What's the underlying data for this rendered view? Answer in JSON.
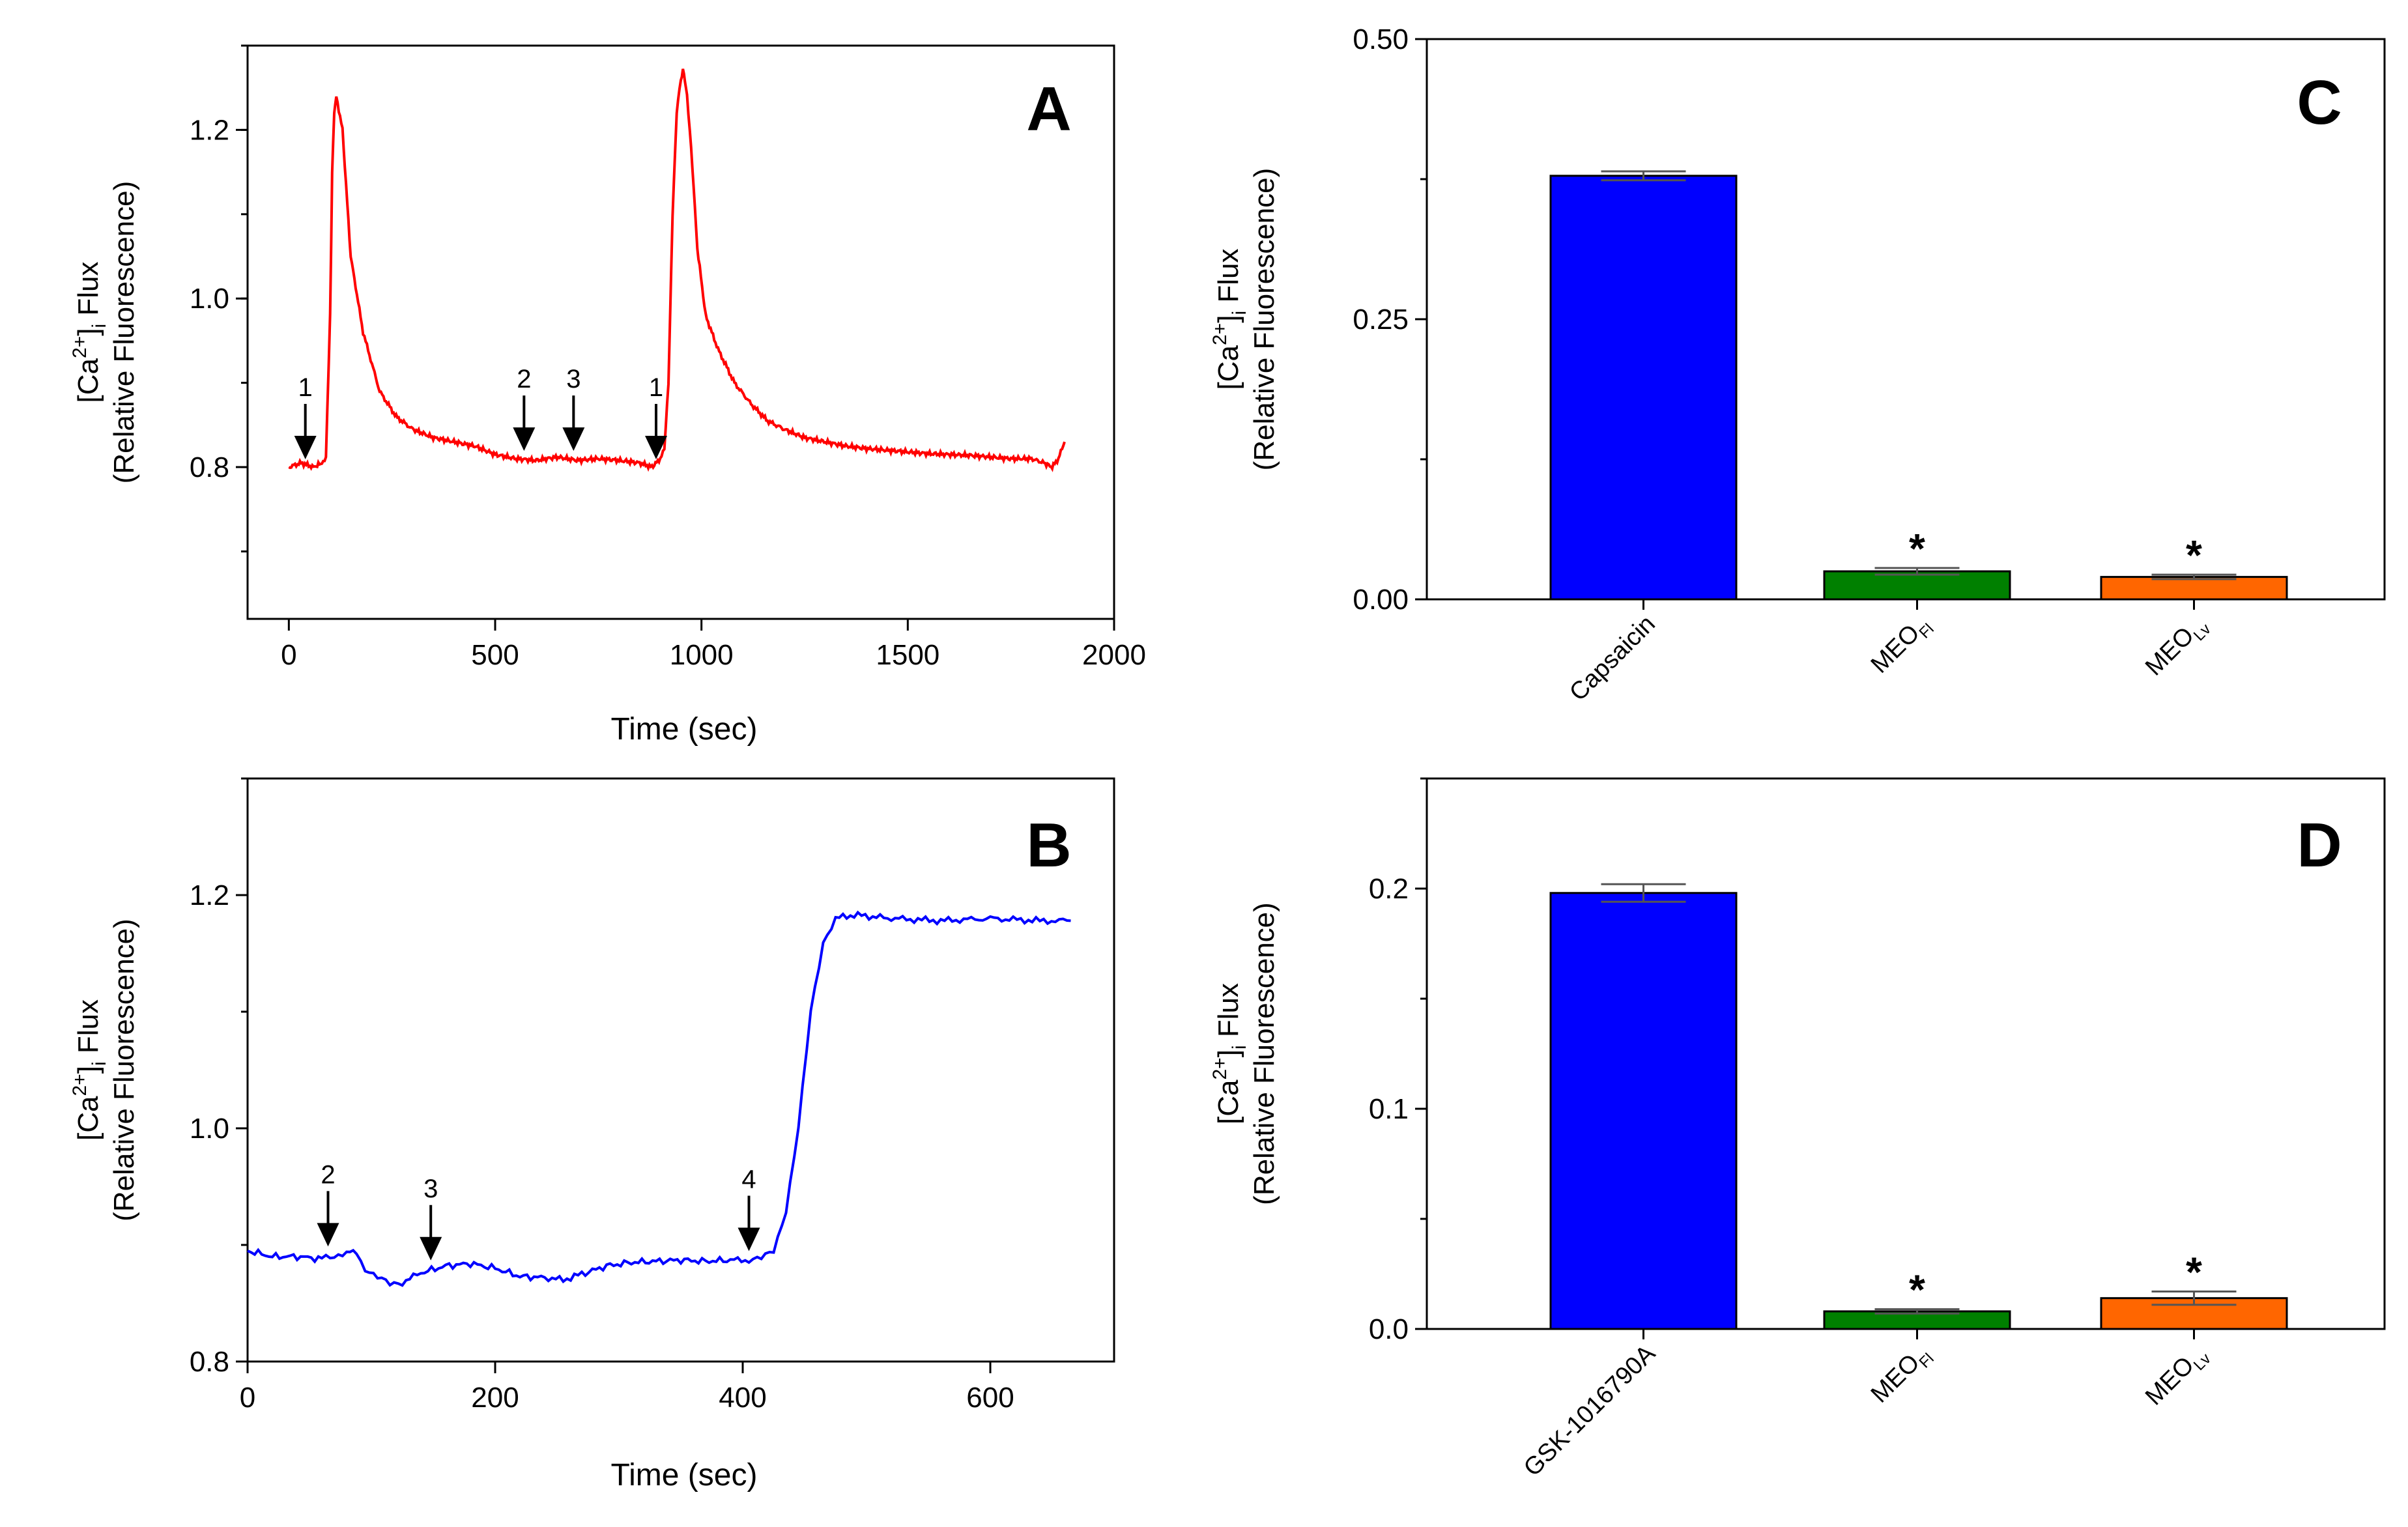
{
  "chart_data": [
    {
      "panel": "A",
      "type": "line",
      "xlabel": "Time  (sec)",
      "ylabel_line1": "[Ca2+]i Flux",
      "ylabel_ca": "[Ca",
      "ylabel_sup": "2+",
      "ylabel_close": "]",
      "ylabel_sub": "i",
      "ylabel_flux": " Flux",
      "ylabel_line2": "(Relative Fluorescence)",
      "xlim": [
        -100,
        2000
      ],
      "ylim": [
        0.62,
        1.3
      ],
      "x_ticks": [
        0,
        500,
        1000,
        1500,
        2000
      ],
      "x_tick_labels": [
        "0",
        "500",
        "1000",
        "1500",
        "2000"
      ],
      "y_ticks": [
        0.8,
        1.0,
        1.2
      ],
      "y_tick_labels": [
        "0.8",
        "1.0",
        "1.2"
      ],
      "color": "#ff0000",
      "series": [
        {
          "name": "trace",
          "x": [
            0,
            30,
            60,
            80,
            90,
            100,
            105,
            110,
            115,
            130,
            150,
            180,
            220,
            260,
            300,
            350,
            400,
            450,
            500,
            550,
            600,
            650,
            700,
            750,
            800,
            850,
            880,
            900,
            910,
            920,
            930,
            940,
            950,
            955,
            960,
            965,
            975,
            990,
            1010,
            1040,
            1080,
            1120,
            1160,
            1200,
            1250,
            1300,
            1350,
            1400,
            1450,
            1500,
            1550,
            1600,
            1650,
            1700,
            1750,
            1800,
            1830,
            1850,
            1865,
            1880
          ],
          "y": [
            0.8,
            0.805,
            0.8,
            0.805,
            0.81,
            0.98,
            1.15,
            1.22,
            1.24,
            1.2,
            1.05,
            0.96,
            0.89,
            0.86,
            0.845,
            0.835,
            0.83,
            0.825,
            0.815,
            0.81,
            0.808,
            0.812,
            0.808,
            0.81,
            0.808,
            0.805,
            0.8,
            0.81,
            0.82,
            0.9,
            1.1,
            1.22,
            1.26,
            1.27,
            1.26,
            1.24,
            1.18,
            1.06,
            0.98,
            0.94,
            0.9,
            0.875,
            0.855,
            0.845,
            0.835,
            0.83,
            0.825,
            0.822,
            0.82,
            0.818,
            0.816,
            0.815,
            0.814,
            0.812,
            0.81,
            0.81,
            0.805,
            0.8,
            0.81,
            0.83
          ]
        }
      ],
      "arrows": [
        {
          "x": 40,
          "y": 0.8,
          "label": "1"
        },
        {
          "x": 570,
          "y": 0.81,
          "label": "2"
        },
        {
          "x": 690,
          "y": 0.81,
          "label": "3"
        },
        {
          "x": 890,
          "y": 0.8,
          "label": "1"
        }
      ]
    },
    {
      "panel": "B",
      "type": "line",
      "xlabel": "Time  (sec)",
      "ylabel_ca": "[Ca",
      "ylabel_sup": "2+",
      "ylabel_close": "]",
      "ylabel_sub": "i",
      "ylabel_flux": " Flux",
      "ylabel_line2": "(Relative Fluorescence)",
      "xlim": [
        0,
        700
      ],
      "ylim": [
        0.8,
        1.3
      ],
      "x_ticks": [
        0,
        200,
        400,
        600
      ],
      "x_tick_labels": [
        "0",
        "200",
        "400",
        "600"
      ],
      "y_ticks": [
        0.8,
        1.0,
        1.2
      ],
      "y_tick_labels": [
        "0.8",
        "1.0",
        "1.2"
      ],
      "color": "#0000ff",
      "series": [
        {
          "name": "trace",
          "x": [
            0,
            20,
            40,
            60,
            70,
            80,
            88,
            95,
            105,
            115,
            125,
            140,
            160,
            180,
            200,
            220,
            240,
            255,
            270,
            290,
            310,
            330,
            350,
            370,
            390,
            405,
            415,
            425,
            435,
            445,
            455,
            465,
            475,
            490,
            520,
            560,
            600,
            640,
            665
          ],
          "y": [
            0.895,
            0.89,
            0.89,
            0.888,
            0.89,
            0.895,
            0.893,
            0.88,
            0.872,
            0.866,
            0.868,
            0.876,
            0.882,
            0.884,
            0.88,
            0.873,
            0.872,
            0.87,
            0.875,
            0.882,
            0.885,
            0.886,
            0.887,
            0.886,
            0.887,
            0.887,
            0.888,
            0.895,
            0.93,
            1.0,
            1.1,
            1.16,
            1.18,
            1.183,
            1.18,
            1.178,
            1.18,
            1.178,
            1.178
          ]
        }
      ],
      "arrows": [
        {
          "x": 65,
          "y": 0.892,
          "label": "2"
        },
        {
          "x": 148,
          "y": 0.88,
          "label": "3"
        },
        {
          "x": 405,
          "y": 0.888,
          "label": "4"
        }
      ]
    },
    {
      "panel": "C",
      "type": "bar",
      "ylabel_ca": "[Ca",
      "ylabel_sup": "2+",
      "ylabel_close": "]",
      "ylabel_sub": "i",
      "ylabel_flux": " Flux",
      "ylabel_line2": "(Relative Fluorescence)",
      "ylim": [
        0,
        0.5
      ],
      "y_ticks": [
        0,
        0.25,
        0.5
      ],
      "y_tick_labels": [
        "0.00",
        "0.25",
        "0.50"
      ],
      "categories": [
        {
          "main": "Capsaicin",
          "sub": ""
        },
        {
          "main": "MEO",
          "sub": "Fl"
        },
        {
          "main": "MEO",
          "sub": "Lv"
        }
      ],
      "values": [
        0.378,
        0.025,
        0.02
      ],
      "errors": [
        0.004,
        0.003,
        0.002
      ],
      "colors": [
        "#0000ff",
        "#008000",
        "#ff6600"
      ],
      "significance": [
        "",
        "*",
        "*"
      ]
    },
    {
      "panel": "D",
      "type": "bar",
      "ylabel_ca": "[Ca",
      "ylabel_sup": "2+",
      "ylabel_close": "]",
      "ylabel_sub": "i",
      "ylabel_flux": " Flux",
      "ylabel_line2": "(Relative Fluorescence)",
      "ylim": [
        0,
        0.25
      ],
      "y_ticks": [
        0,
        0.1,
        0.2
      ],
      "y_tick_labels": [
        "0.0",
        "0.1",
        "0.2"
      ],
      "categories": [
        {
          "main": "GSK-1016790A",
          "sub": ""
        },
        {
          "main": "MEO",
          "sub": "Fl"
        },
        {
          "main": "MEO",
          "sub": "Lv"
        }
      ],
      "values": [
        0.198,
        0.008,
        0.014
      ],
      "errors": [
        0.004,
        0.001,
        0.003
      ],
      "colors": [
        "#0000ff",
        "#008000",
        "#ff6600"
      ],
      "significance": [
        "",
        "*",
        "*"
      ]
    }
  ]
}
